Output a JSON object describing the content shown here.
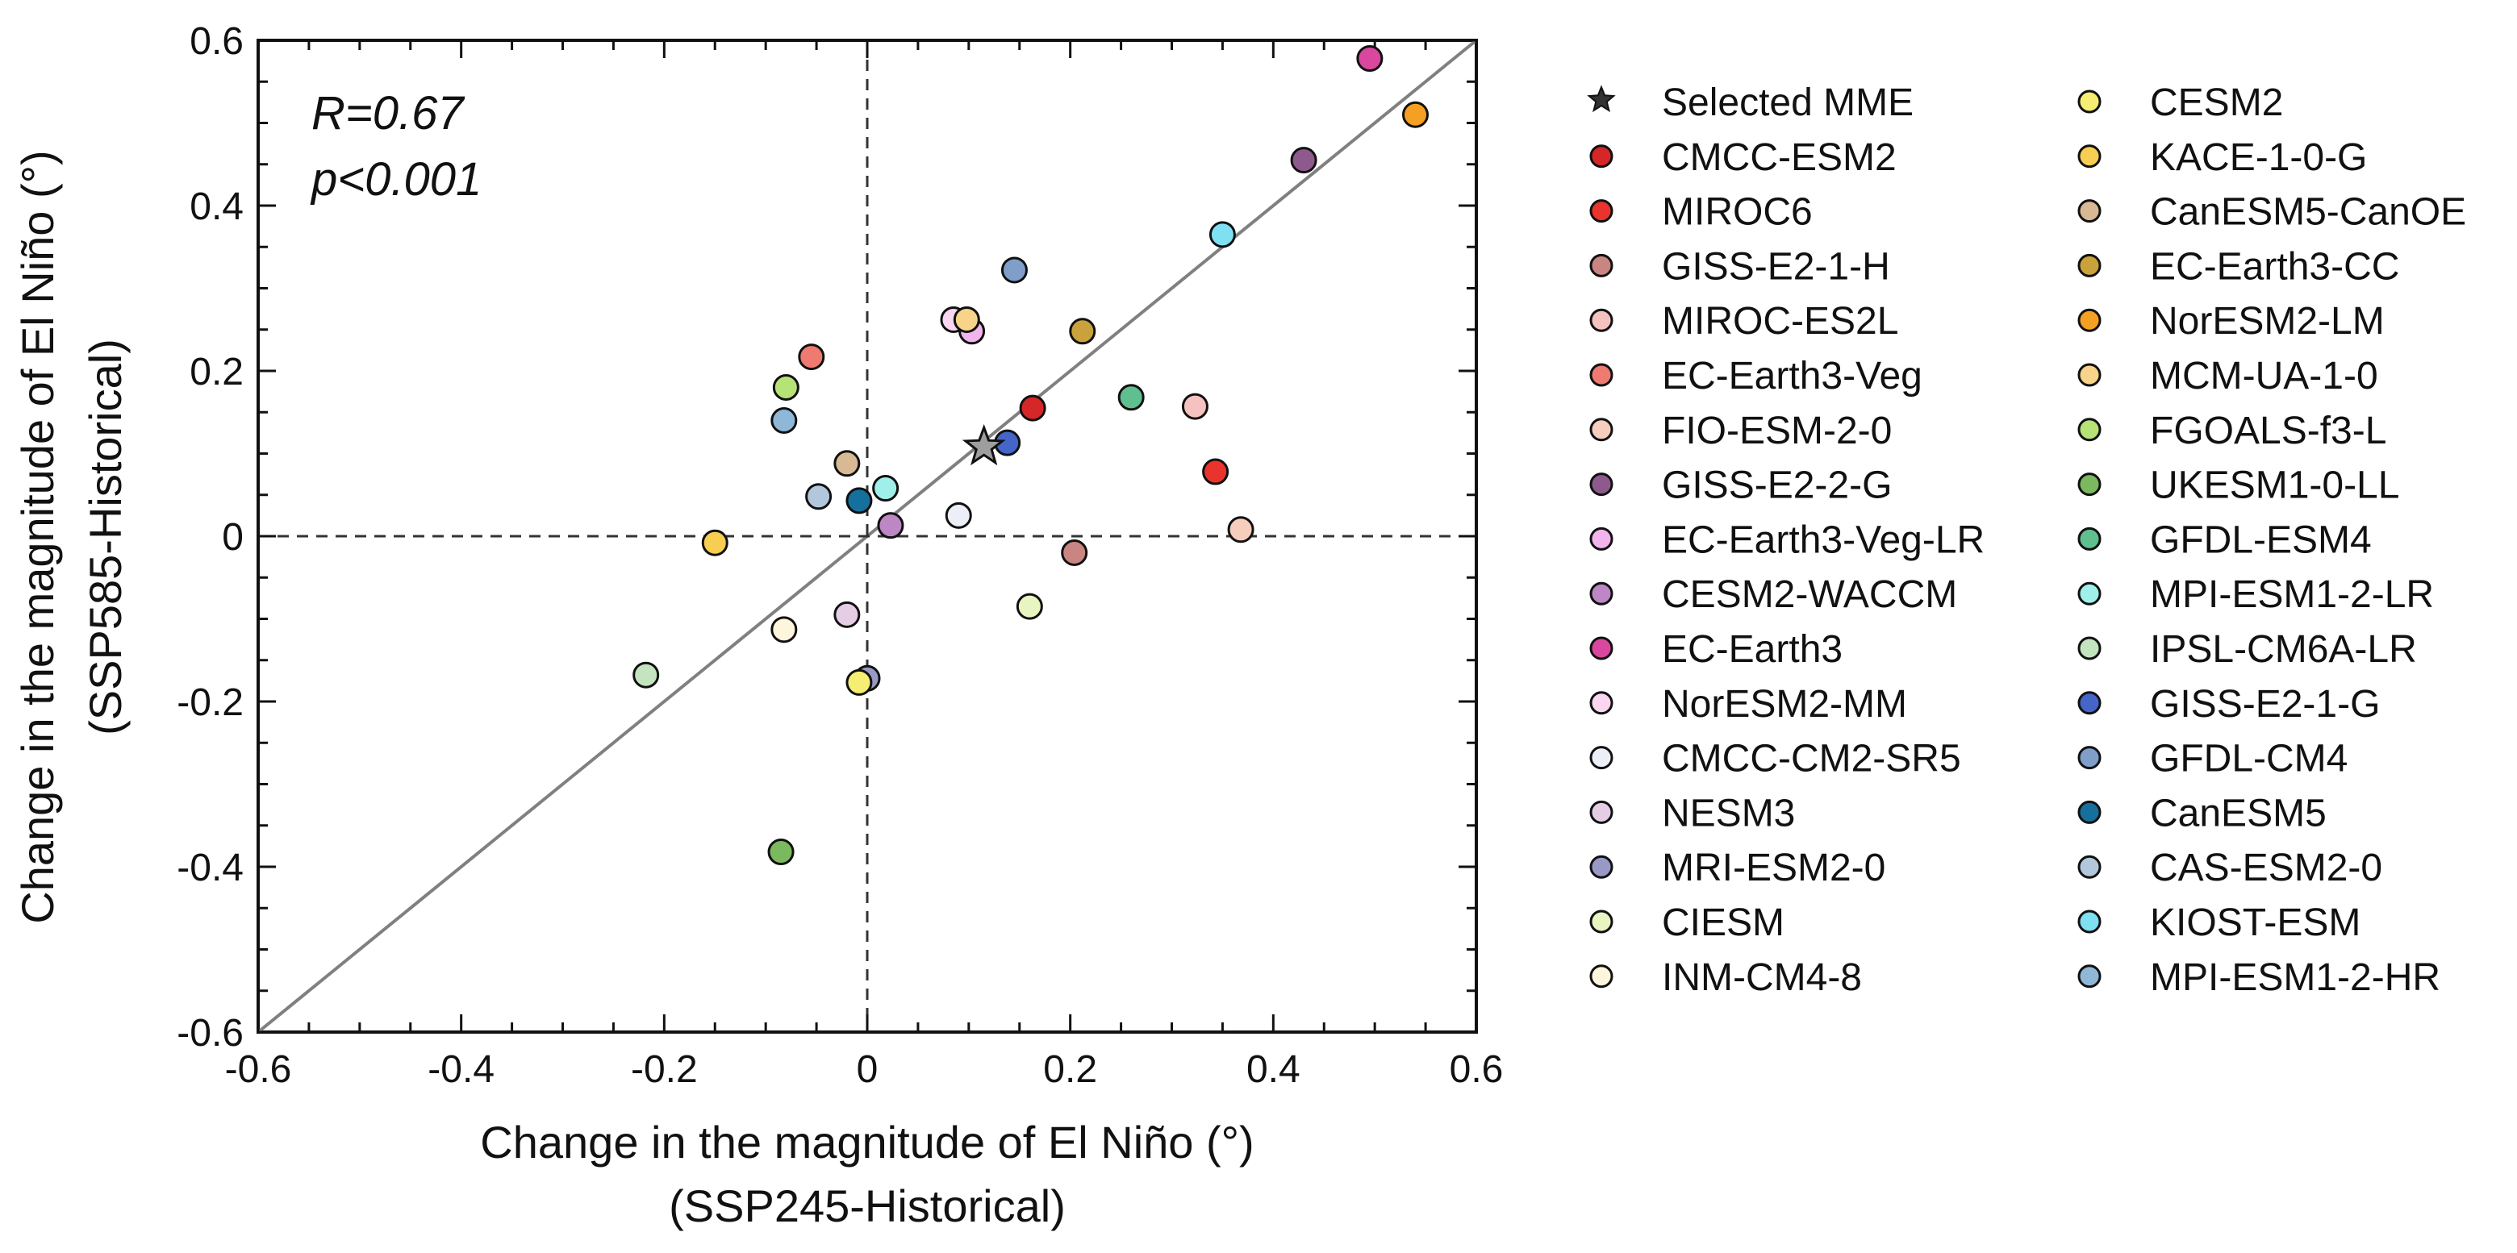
{
  "chart_data": {
    "type": "scatter",
    "xlabel": "Change in the magnitude of El Niño (°)",
    "xlabel_sub": "(SSP245-Historical)",
    "ylabel": "Change in the magnitude of El Niño (°)",
    "ylabel_sub": "(SSP585-Historical)",
    "xlim": [
      -0.6,
      0.6
    ],
    "ylim": [
      -0.6,
      0.6
    ],
    "xticks": [
      -0.6,
      -0.4,
      -0.2,
      0,
      0.2,
      0.4,
      0.6
    ],
    "yticks": [
      -0.6,
      -0.4,
      -0.2,
      0,
      0.2,
      0.4,
      0.6
    ],
    "xtick_labels": [
      "-0.6",
      "-0.4",
      "-0.2",
      "0",
      "0.2",
      "0.4",
      "0.6"
    ],
    "ytick_labels": [
      "-0.6",
      "-0.4",
      "-0.2",
      "0",
      "0.2",
      "0.4",
      "0.6"
    ],
    "annotations": {
      "r": "R=0.67",
      "p": "p<0.001"
    },
    "reference_lines": {
      "diagonal": "y=x",
      "zero_lines": "dashed"
    },
    "legend_position": "right",
    "mme": {
      "name": "Selected MME",
      "x": 0.115,
      "y": 0.108,
      "color": "#9e9e9e"
    },
    "models": [
      {
        "name": "CMCC-ESM2",
        "color": "#d62728",
        "x": 0.163,
        "y": 0.155
      },
      {
        "name": "MIROC6",
        "color": "#e8342c",
        "x": 0.343,
        "y": 0.078
      },
      {
        "name": "GISS-E2-1-H",
        "color": "#c98581",
        "x": 0.204,
        "y": -0.02
      },
      {
        "name": "MIROC-ES2L",
        "color": "#f5c2c0",
        "x": 0.323,
        "y": 0.157
      },
      {
        "name": "EC-Earth3-Veg",
        "color": "#ef7a72",
        "x": -0.055,
        "y": 0.217
      },
      {
        "name": "FIO-ESM-2-0",
        "color": "#f7cdbd",
        "x": 0.368,
        "y": 0.008
      },
      {
        "name": "GISS-E2-2-G",
        "color": "#8e5a8e",
        "x": 0.43,
        "y": 0.455
      },
      {
        "name": "EC-Earth3-Veg-LR",
        "color": "#f2b4ec",
        "x": 0.103,
        "y": 0.248
      },
      {
        "name": "CESM2-WACCM",
        "color": "#bd86c4",
        "x": 0.023,
        "y": 0.013
      },
      {
        "name": "EC-Earth3",
        "color": "#d9479e",
        "x": 0.495,
        "y": 0.578
      },
      {
        "name": "NorESM2-MM",
        "color": "#fad6f1",
        "x": 0.085,
        "y": 0.262
      },
      {
        "name": "CMCC-CM2-SR5",
        "color": "#eceef8",
        "x": 0.09,
        "y": 0.025
      },
      {
        "name": "NESM3",
        "color": "#e6cde6",
        "x": -0.02,
        "y": -0.095
      },
      {
        "name": "MRI-ESM2-0",
        "color": "#9999c6",
        "x": 0.0,
        "y": -0.172
      },
      {
        "name": "CIESM",
        "color": "#e8f5c0",
        "x": 0.16,
        "y": -0.085
      },
      {
        "name": "INM-CM4-8",
        "color": "#fdf6dc",
        "x": -0.082,
        "y": -0.113
      },
      {
        "name": "CESM2",
        "color": "#f5ee72",
        "x": -0.008,
        "y": -0.177
      },
      {
        "name": "KACE-1-0-G",
        "color": "#f7cd52",
        "x": -0.15,
        "y": -0.008
      },
      {
        "name": "CanESM5-CanOE",
        "color": "#d8b993",
        "x": -0.02,
        "y": 0.088
      },
      {
        "name": "EC-Earth3-CC",
        "color": "#c9a23c",
        "x": 0.212,
        "y": 0.248
      },
      {
        "name": "NorESM2-LM",
        "color": "#f5a022",
        "x": 0.54,
        "y": 0.51
      },
      {
        "name": "MCM-UA-1-0",
        "color": "#f7d489",
        "x": 0.098,
        "y": 0.262
      },
      {
        "name": "FGOALS-f3-L",
        "color": "#b7e276",
        "x": -0.08,
        "y": 0.18
      },
      {
        "name": "UKESM1-0-LL",
        "color": "#7ab95e",
        "x": -0.085,
        "y": -0.382
      },
      {
        "name": "GFDL-ESM4",
        "color": "#5fbf8f",
        "x": 0.26,
        "y": 0.168
      },
      {
        "name": "MPI-ESM1-2-LR",
        "color": "#9ff0ea",
        "x": 0.018,
        "y": 0.058
      },
      {
        "name": "IPSL-CM6A-LR",
        "color": "#c4e4bf",
        "x": -0.218,
        "y": -0.168
      },
      {
        "name": "GISS-E2-1-G",
        "color": "#4565c9",
        "x": 0.138,
        "y": 0.113
      },
      {
        "name": "GFDL-CM4",
        "color": "#7f9ec9",
        "x": 0.145,
        "y": 0.322
      },
      {
        "name": "CanESM5",
        "color": "#15709e",
        "x": -0.008,
        "y": 0.043
      },
      {
        "name": "CAS-ESM2-0",
        "color": "#b3c7dc",
        "x": -0.048,
        "y": 0.048
      },
      {
        "name": "KIOST-ESM",
        "color": "#7fe0f2",
        "x": 0.35,
        "y": 0.365
      },
      {
        "name": "MPI-ESM1-2-HR",
        "color": "#8fb8d8",
        "x": -0.082,
        "y": 0.14
      }
    ]
  }
}
